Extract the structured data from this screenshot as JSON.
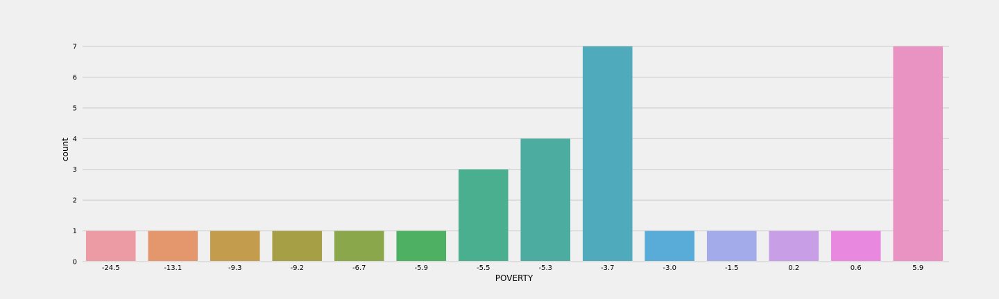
{
  "chart_data": {
    "type": "bar",
    "title": "",
    "xlabel": "POVERTY",
    "ylabel": "count",
    "categories": [
      "-24.5",
      "-13.1",
      "-9.3",
      "-9.2",
      "-6.7",
      "-5.9",
      "-5.5",
      "-5.3",
      "-3.7",
      "-3.0",
      "-1.5",
      "0.2",
      "0.6",
      "5.9"
    ],
    "values": [
      1,
      1,
      1,
      1,
      1,
      1,
      3,
      4,
      7,
      1,
      1,
      1,
      1,
      7
    ],
    "ylim": [
      0,
      7
    ],
    "yticks": [
      0,
      1,
      2,
      3,
      4,
      5,
      6,
      7
    ],
    "grid": "horizontal",
    "legend": "none",
    "colors": [
      "#ec9aa3",
      "#e4976d",
      "#c39c4e",
      "#a69f46",
      "#8aa84b",
      "#4db062",
      "#4aaf8e",
      "#4cac9f",
      "#4fabbb",
      "#59acd8",
      "#a3abea",
      "#c89fe6",
      "#e889df",
      "#e893c2"
    ]
  }
}
